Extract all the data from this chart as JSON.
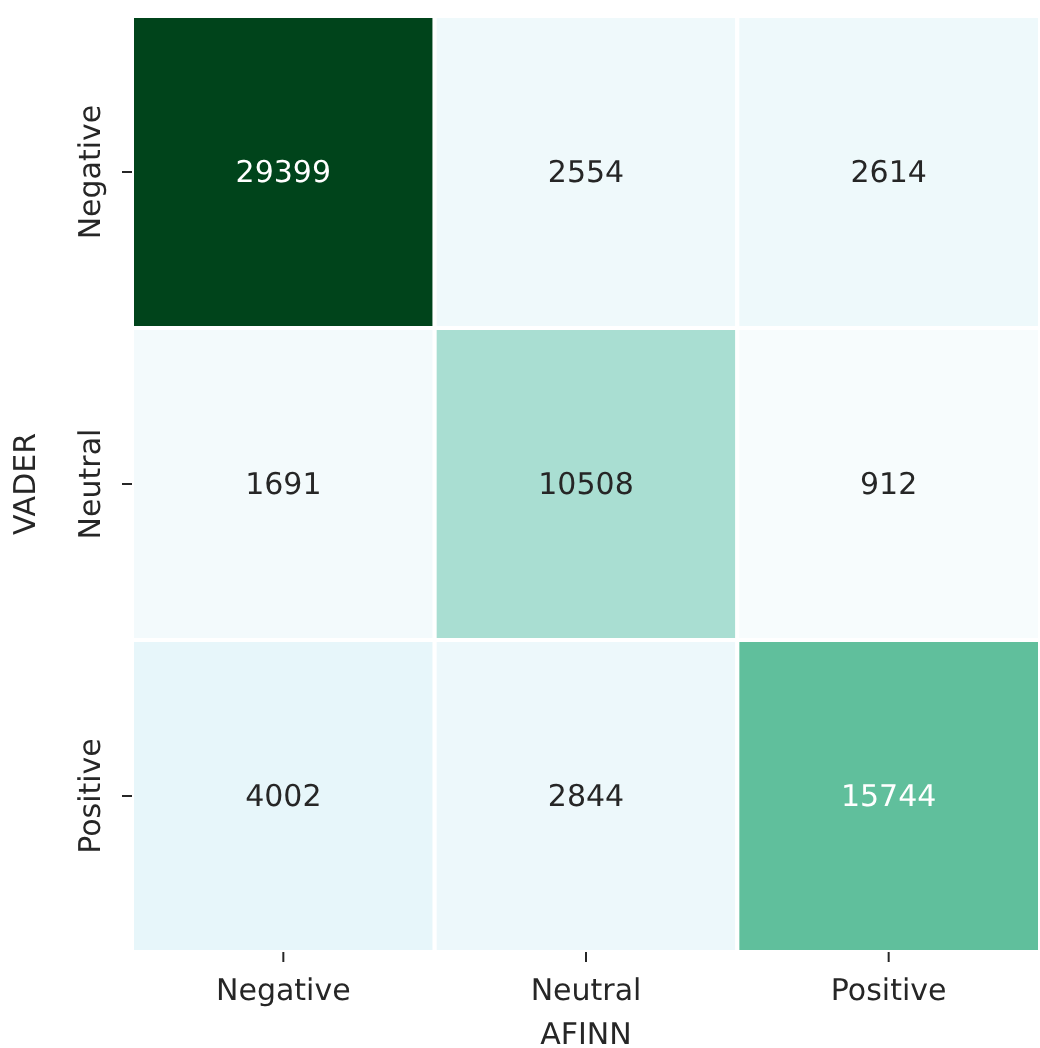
{
  "chart_data": {
    "type": "heatmap",
    "xlabel": "AFINN",
    "ylabel": "VADER",
    "categories": [
      "Negative",
      "Neutral",
      "Positive"
    ],
    "y_categories": [
      "Negative",
      "Neutral",
      "Positive"
    ],
    "cells": [
      [
        29399,
        2554,
        2614
      ],
      [
        1691,
        10508,
        912
      ],
      [
        4002,
        2844,
        15744
      ]
    ],
    "data_labels": true
  }
}
